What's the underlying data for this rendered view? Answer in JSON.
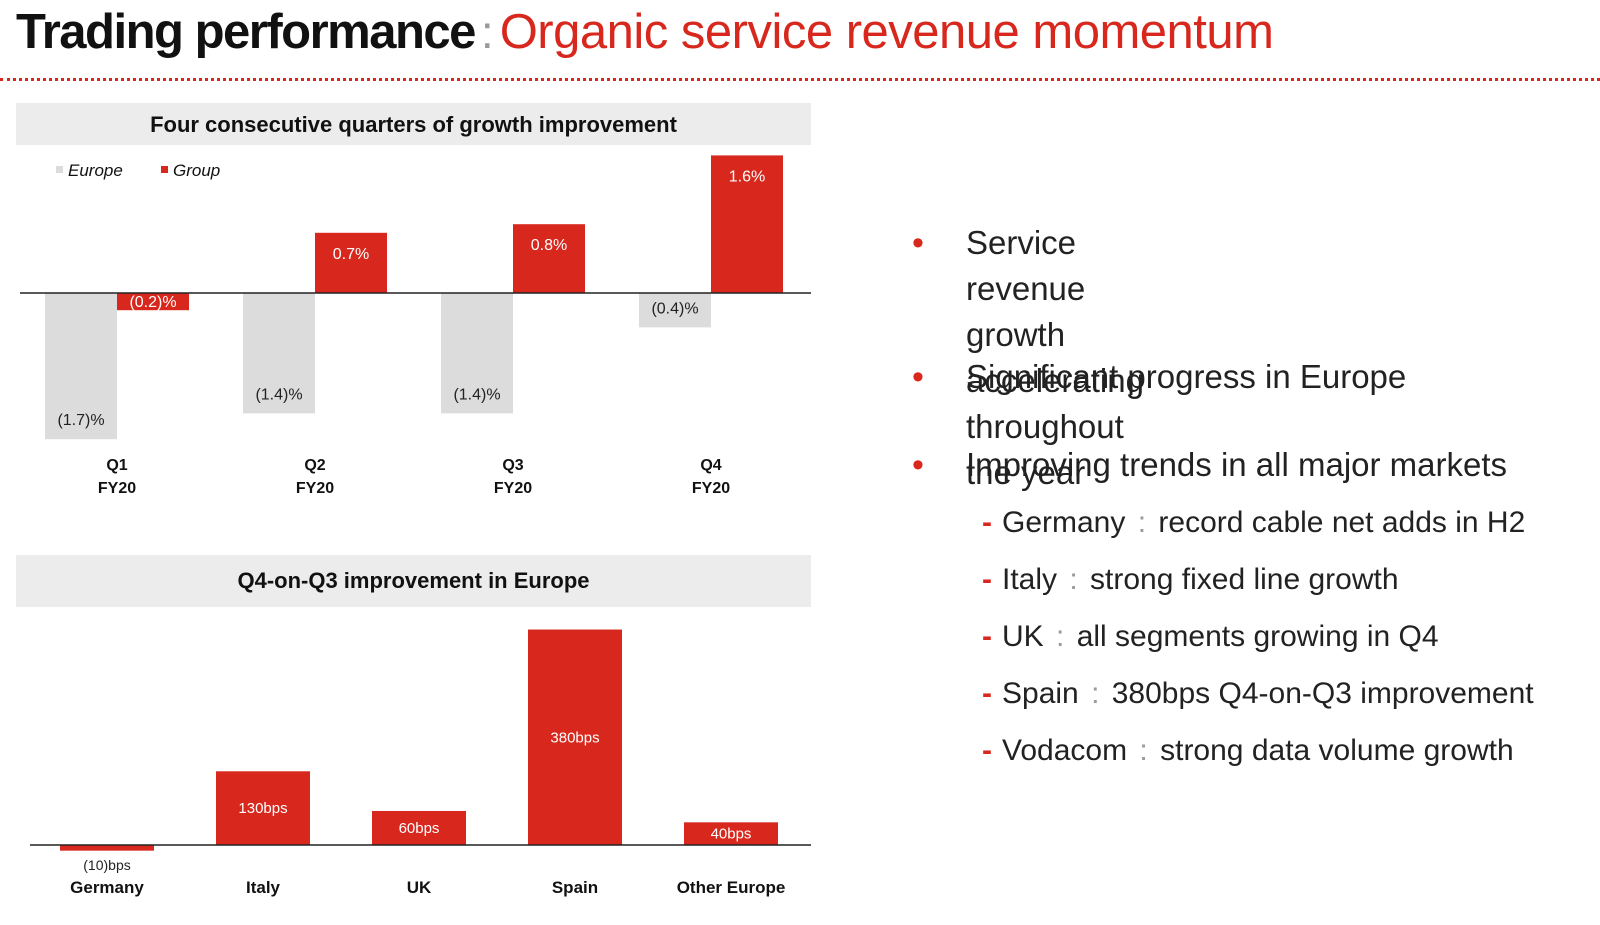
{
  "header": {
    "title": "Trading performance",
    "separator": ":",
    "subtitle": "Organic service revenue momentum"
  },
  "colors": {
    "accent": "#d8281e",
    "europe": "#dcdcdc",
    "panel_bg": "#ececec"
  },
  "chart_data": [
    {
      "type": "bar",
      "title": "Four consecutive quarters of growth improvement",
      "categories": [
        "Q1\nFY20",
        "Q2\nFY20",
        "Q3\nFY20",
        "Q4\nFY20"
      ],
      "series": [
        {
          "name": "Europe",
          "values": [
            -1.7,
            -1.4,
            -1.4,
            -0.4
          ],
          "labels": [
            "(1.7)%",
            "(1.4)%",
            "(1.4)%",
            "(0.4)%"
          ],
          "color": "#dcdcdc"
        },
        {
          "name": "Group",
          "values": [
            -0.2,
            0.7,
            0.8,
            1.6
          ],
          "labels": [
            "(0.2)%",
            "0.7%",
            "0.8%",
            "1.6%"
          ],
          "color": "#d8281e"
        }
      ],
      "ylim": [
        -1.7,
        1.6
      ],
      "legend": "top-left",
      "grid": false
    },
    {
      "type": "bar",
      "title": "Q4-on-Q3 improvement in Europe",
      "categories": [
        "Germany",
        "Italy",
        "UK",
        "Spain",
        "Other Europe"
      ],
      "values": [
        -10,
        130,
        60,
        380,
        40
      ],
      "labels": [
        "(10)bps",
        "130bps",
        "60bps",
        "380bps",
        "40bps"
      ],
      "ylim": [
        -10,
        380
      ],
      "grid": false
    }
  ],
  "bullets": [
    {
      "text": "Service revenue growth accelerating\nthroughout the year"
    },
    {
      "text": "Significant progress in Europe"
    },
    {
      "text": "Improving trends in all major markets"
    }
  ],
  "sub_bullets": [
    {
      "country": "Germany",
      "text": "record cable net adds in H2"
    },
    {
      "country": "Italy",
      "text": "strong fixed line growth"
    },
    {
      "country": "UK",
      "text": "all segments growing in Q4"
    },
    {
      "country": "Spain",
      "text": "380bps Q4-on-Q3 improvement"
    },
    {
      "country": "Vodacom",
      "text": "strong data volume growth"
    }
  ]
}
